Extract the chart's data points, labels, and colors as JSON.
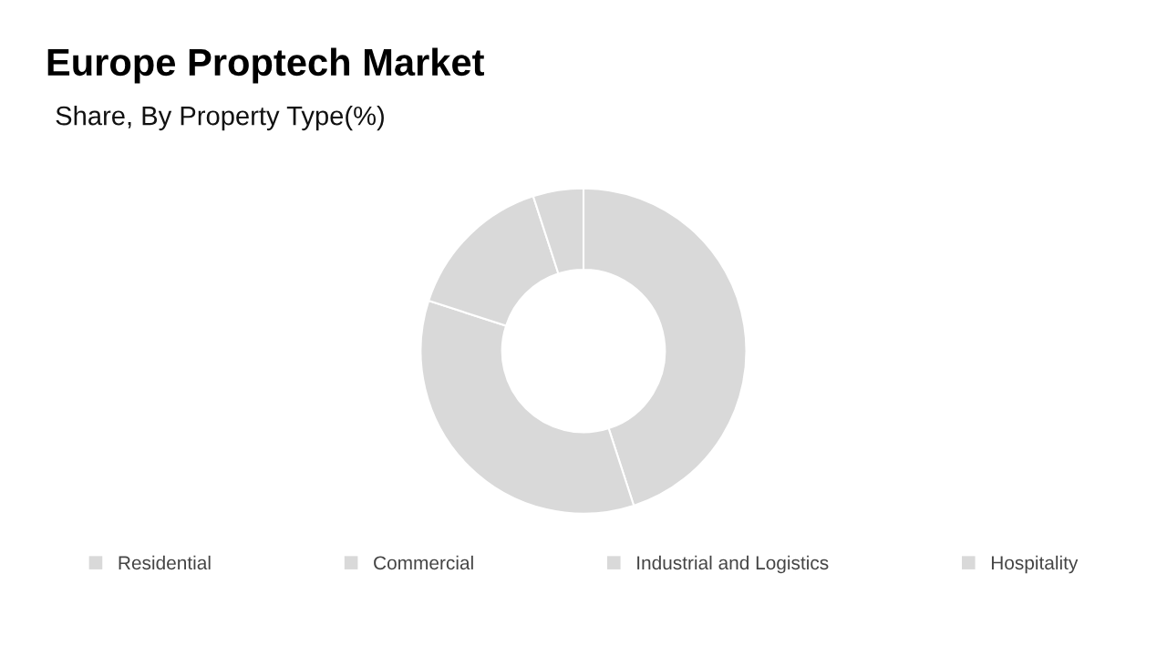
{
  "chart_data": {
    "type": "donut",
    "title": "Europe Proptech Market",
    "subtitle": "Share, By Property Type(%)",
    "categories": [
      "Residential",
      "Commercial",
      "Industrial and Logistics",
      "Hospitality"
    ],
    "values": [
      45,
      35,
      15,
      5
    ],
    "colors": [
      "#d9d9d9",
      "#d9d9d9",
      "#d9d9d9",
      "#d9d9d9"
    ],
    "legend": "bottom"
  }
}
